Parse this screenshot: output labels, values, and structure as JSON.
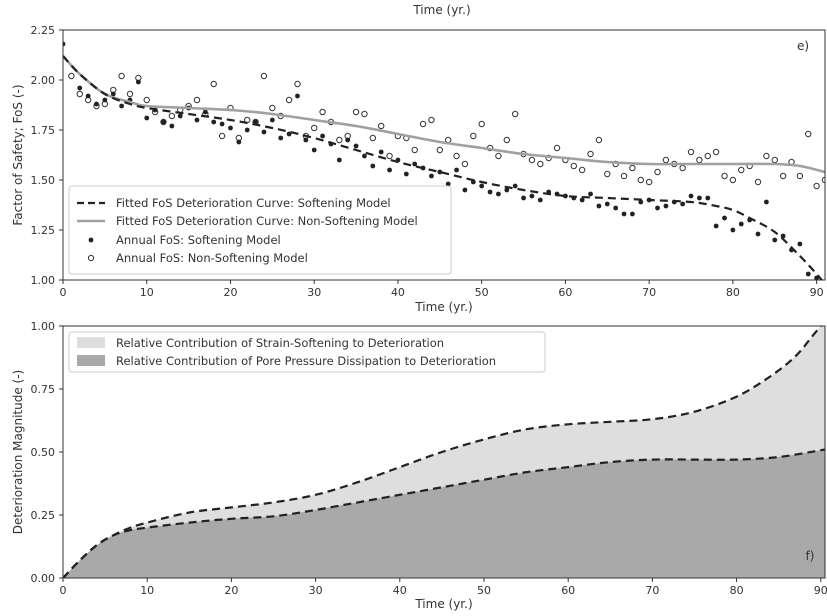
{
  "chart_data": [
    {
      "panel": "e",
      "type": "line+scatter",
      "top_label": "Time (yr.)",
      "xlabel": "Time (yr.)",
      "ylabel": "Factor of Safety; FoS (-)",
      "panel_tag": "e)",
      "xlim": [
        0,
        91
      ],
      "ylim": [
        1.0,
        2.25
      ],
      "xticks": [
        0,
        10,
        20,
        30,
        40,
        50,
        60,
        70,
        80,
        90
      ],
      "yticks": [
        "1.00",
        "1.25",
        "1.50",
        "1.75",
        "2.00",
        "2.25"
      ],
      "grid": false,
      "legend_position": "lower-left",
      "series": [
        {
          "name": "Fitted FoS Deterioration Curve: Softening Model",
          "style": "dashed-black",
          "x": [
            0,
            2,
            5,
            8,
            10,
            15,
            20,
            25,
            30,
            35,
            40,
            45,
            50,
            55,
            60,
            65,
            70,
            75,
            78,
            80,
            82,
            85,
            88,
            90,
            91
          ],
          "y": [
            2.12,
            2.03,
            1.93,
            1.88,
            1.86,
            1.83,
            1.8,
            1.76,
            1.71,
            1.65,
            1.59,
            1.54,
            1.49,
            1.45,
            1.42,
            1.41,
            1.4,
            1.39,
            1.37,
            1.35,
            1.31,
            1.24,
            1.12,
            1.03,
            0.98
          ]
        },
        {
          "name": "Fitted FoS Deterioration Curve: Non-Softening Model",
          "style": "solid-gray",
          "x": [
            0,
            2,
            5,
            8,
            10,
            15,
            20,
            25,
            30,
            35,
            40,
            45,
            50,
            55,
            60,
            65,
            70,
            75,
            80,
            85,
            88,
            91
          ],
          "y": [
            2.12,
            2.03,
            1.93,
            1.89,
            1.87,
            1.86,
            1.85,
            1.83,
            1.8,
            1.77,
            1.73,
            1.69,
            1.66,
            1.63,
            1.61,
            1.59,
            1.58,
            1.58,
            1.58,
            1.58,
            1.57,
            1.54
          ]
        },
        {
          "name": "Annual FoS: Softening Model",
          "style": "filled-dots",
          "x": [
            0,
            2,
            3,
            4,
            5,
            6,
            7,
            8,
            9,
            10,
            11,
            12,
            13,
            14,
            15,
            16,
            17,
            18,
            19,
            20,
            21,
            22,
            23,
            24,
            25,
            26,
            27,
            28,
            29,
            30,
            31,
            32,
            33,
            34,
            35,
            36,
            37,
            38,
            39,
            40,
            41,
            42,
            43,
            44,
            45,
            46,
            47,
            48,
            49,
            50,
            51,
            52,
            53,
            54,
            55,
            56,
            57,
            58,
            59,
            60,
            61,
            62,
            63,
            64,
            65,
            66,
            67,
            68,
            69,
            70,
            71,
            72,
            73,
            74,
            75,
            76,
            77,
            78,
            79,
            80,
            81,
            82,
            83,
            84,
            85,
            86,
            87,
            88,
            89,
            90
          ],
          "y": [
            2.18,
            1.96,
            1.92,
            1.88,
            1.9,
            1.93,
            1.87,
            1.9,
            1.99,
            1.81,
            1.85,
            1.79,
            1.77,
            1.82,
            1.86,
            1.8,
            1.84,
            1.79,
            1.78,
            1.76,
            1.69,
            1.75,
            1.79,
            1.74,
            1.8,
            1.71,
            1.73,
            1.92,
            1.7,
            1.65,
            1.72,
            1.68,
            1.6,
            1.7,
            1.67,
            1.62,
            1.57,
            1.64,
            1.55,
            1.6,
            1.53,
            1.58,
            1.56,
            1.52,
            1.54,
            1.48,
            1.55,
            1.45,
            1.49,
            1.47,
            1.44,
            1.43,
            1.45,
            1.47,
            1.41,
            1.42,
            1.4,
            1.44,
            1.43,
            1.42,
            1.41,
            1.4,
            1.43,
            1.37,
            1.38,
            1.36,
            1.33,
            1.33,
            1.39,
            1.4,
            1.36,
            1.37,
            1.39,
            1.38,
            1.42,
            1.41,
            1.41,
            1.27,
            1.31,
            1.25,
            1.28,
            1.3,
            1.23,
            1.39,
            1.2,
            1.22,
            1.15,
            1.18,
            1.03,
            1.01
          ]
        },
        {
          "name": "Annual FoS: Non-Softening Model",
          "style": "open-circles",
          "x": [
            1,
            2,
            3,
            4,
            5,
            6,
            7,
            8,
            9,
            10,
            11,
            12,
            13,
            14,
            15,
            16,
            17,
            18,
            19,
            20,
            21,
            22,
            23,
            24,
            25,
            26,
            27,
            28,
            29,
            30,
            31,
            32,
            33,
            34,
            35,
            36,
            37,
            38,
            39,
            40,
            41,
            42,
            43,
            44,
            45,
            46,
            47,
            48,
            49,
            50,
            51,
            52,
            53,
            54,
            55,
            56,
            57,
            58,
            59,
            60,
            61,
            62,
            63,
            64,
            65,
            66,
            67,
            68,
            69,
            70,
            71,
            72,
            73,
            74,
            75,
            76,
            77,
            78,
            79,
            80,
            81,
            82,
            83,
            84,
            85,
            86,
            87,
            88,
            89,
            90,
            91
          ],
          "y": [
            2.02,
            1.93,
            1.9,
            1.87,
            1.88,
            1.95,
            2.02,
            1.93,
            2.01,
            1.9,
            1.84,
            1.79,
            1.82,
            1.85,
            1.87,
            1.9,
            1.83,
            1.98,
            1.72,
            1.86,
            1.71,
            1.8,
            1.79,
            2.02,
            1.86,
            1.82,
            1.9,
            1.98,
            1.72,
            1.76,
            1.84,
            1.79,
            1.7,
            1.72,
            1.84,
            1.83,
            1.71,
            1.77,
            1.62,
            1.72,
            1.71,
            1.65,
            1.78,
            1.8,
            1.65,
            1.7,
            1.62,
            1.58,
            1.72,
            1.78,
            1.66,
            1.62,
            1.7,
            1.83,
            1.63,
            1.6,
            1.58,
            1.61,
            1.66,
            1.6,
            1.57,
            1.55,
            1.63,
            1.7,
            1.53,
            1.58,
            1.52,
            1.56,
            1.5,
            1.49,
            1.54,
            1.6,
            1.58,
            1.56,
            1.64,
            1.6,
            1.62,
            1.64,
            1.52,
            1.5,
            1.55,
            1.57,
            1.49,
            1.62,
            1.6,
            1.52,
            1.59,
            1.52,
            1.73,
            1.47,
            1.5
          ]
        }
      ]
    },
    {
      "panel": "f",
      "type": "area",
      "xlabel": "Time (yr.)",
      "ylabel": "Deterioration Magnitude (-)",
      "panel_tag": "f)",
      "xlim": [
        0,
        90.5
      ],
      "ylim": [
        0.0,
        1.0
      ],
      "xticks": [
        0,
        10,
        20,
        30,
        40,
        50,
        60,
        70,
        80,
        90
      ],
      "yticks": [
        "0.00",
        "0.25",
        "0.50",
        "0.75",
        "1.00"
      ],
      "grid": false,
      "legend_position": "upper-left",
      "series": [
        {
          "name": "Relative Contribution of Strain-Softening to Deterioration",
          "fill": "#dedede",
          "x": [
            0,
            2,
            4,
            6,
            8,
            10,
            15,
            20,
            25,
            30,
            35,
            40,
            45,
            50,
            55,
            60,
            65,
            70,
            75,
            80,
            84,
            87,
            89,
            90.5
          ],
          "y": [
            0.0,
            0.07,
            0.13,
            0.17,
            0.2,
            0.22,
            0.26,
            0.28,
            0.3,
            0.33,
            0.38,
            0.44,
            0.5,
            0.55,
            0.59,
            0.61,
            0.62,
            0.63,
            0.66,
            0.72,
            0.8,
            0.88,
            0.96,
            1.02
          ]
        },
        {
          "name": "Relative Contribution of Pore Pressure Dissipation to Deterioration",
          "fill": "#a9a9a9",
          "x": [
            0,
            2,
            4,
            6,
            8,
            10,
            15,
            20,
            25,
            30,
            35,
            40,
            45,
            50,
            55,
            60,
            65,
            70,
            75,
            80,
            85,
            90.5
          ],
          "y": [
            0.0,
            0.07,
            0.13,
            0.17,
            0.19,
            0.2,
            0.22,
            0.235,
            0.245,
            0.27,
            0.3,
            0.33,
            0.36,
            0.39,
            0.42,
            0.44,
            0.46,
            0.47,
            0.47,
            0.47,
            0.48,
            0.51
          ]
        }
      ]
    }
  ]
}
